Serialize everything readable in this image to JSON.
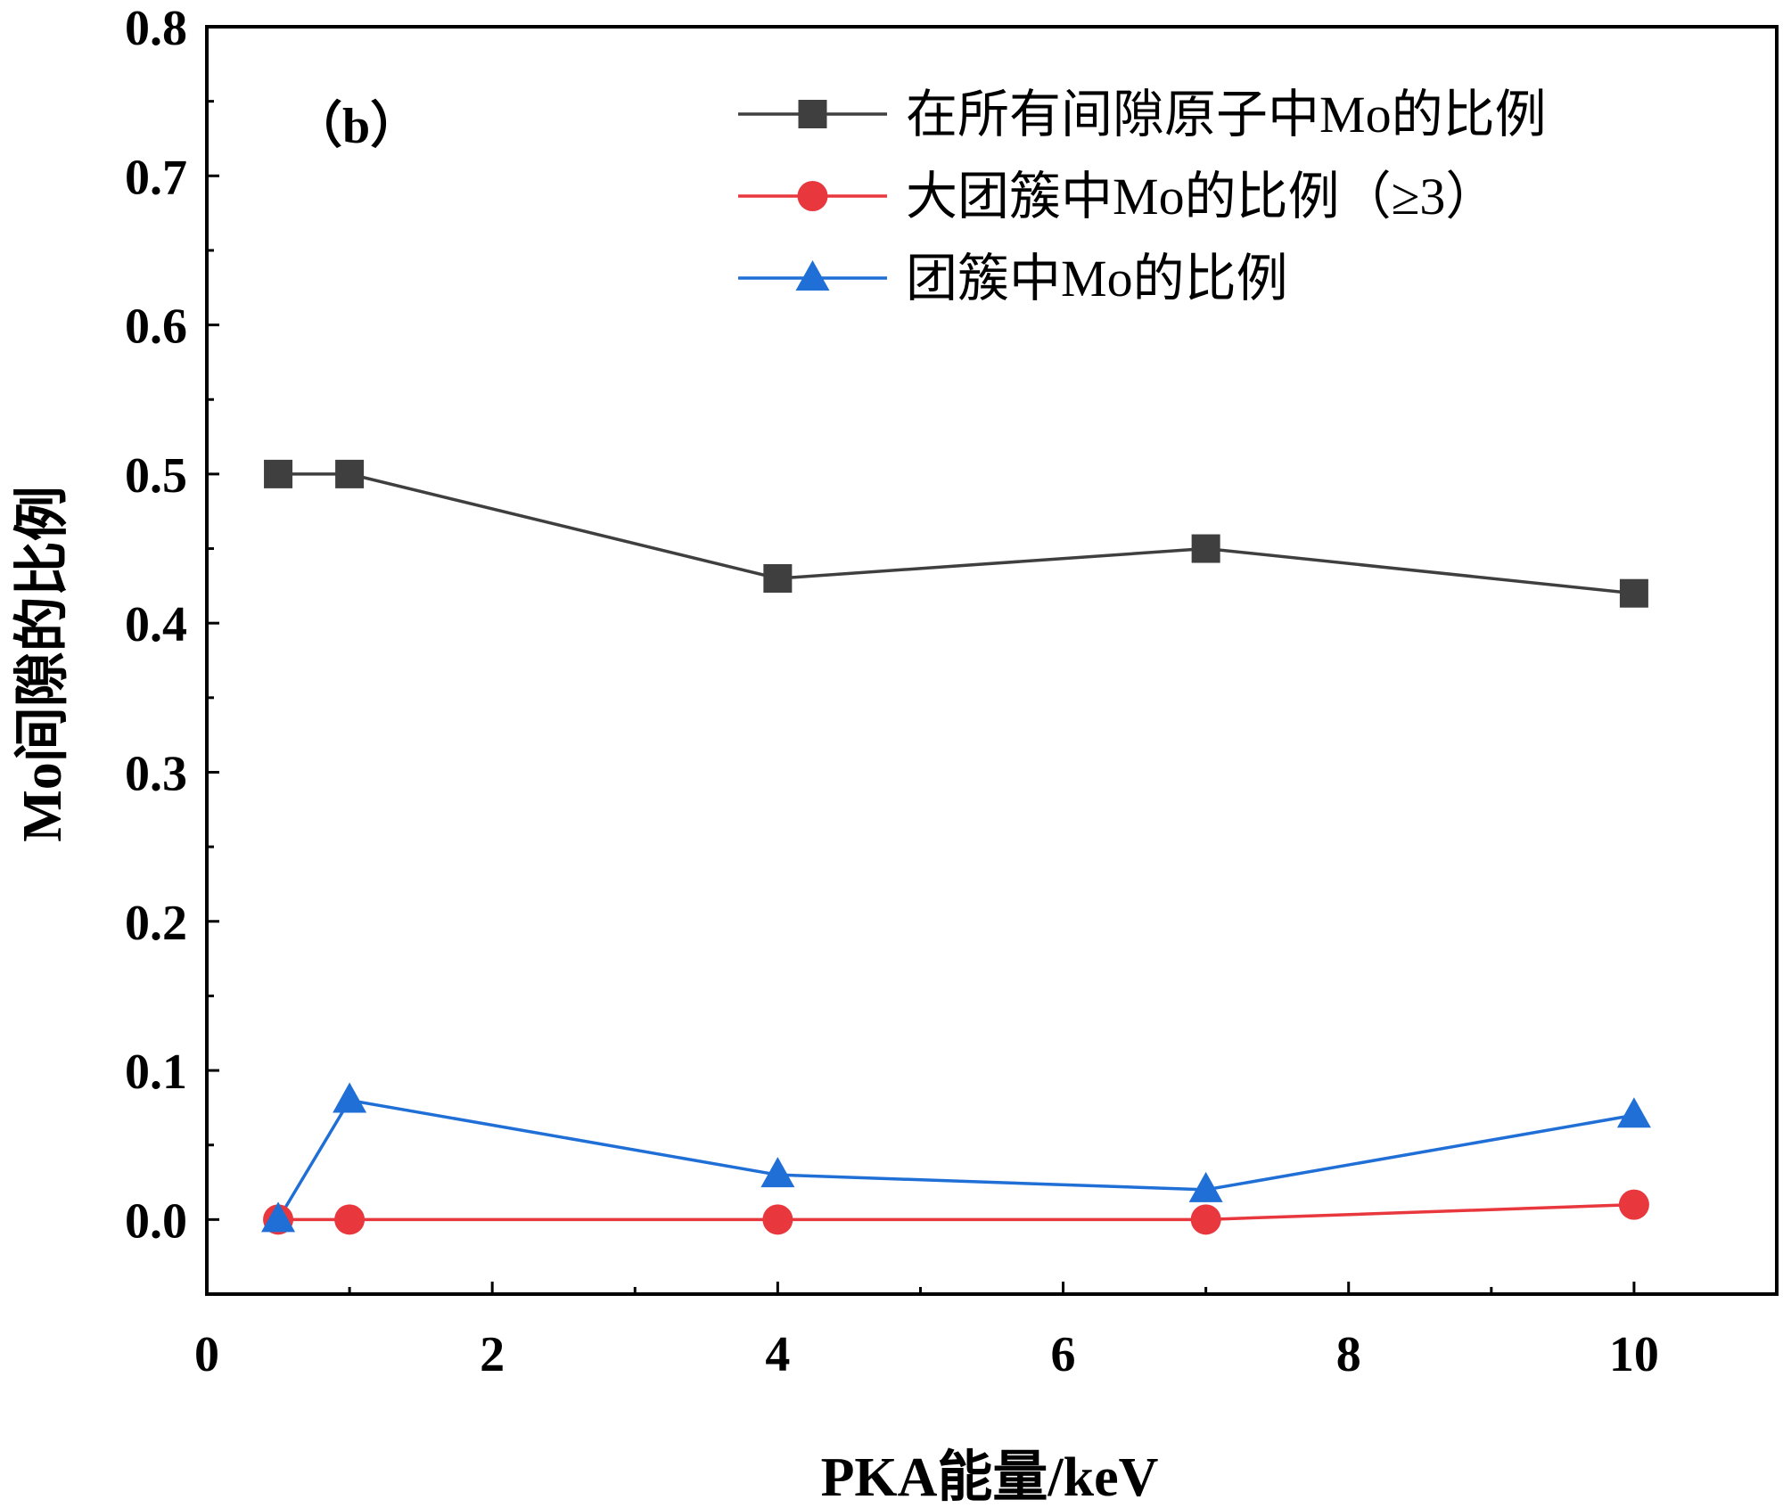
{
  "chart_data": {
    "type": "line",
    "title": "",
    "annotation": "（b）",
    "xlabel": "PKA能量/keV",
    "ylabel": "Mo间隙的比例",
    "xlim": [
      0,
      11
    ],
    "ylim": [
      -0.05,
      0.8
    ],
    "xticks": [
      0,
      2,
      4,
      6,
      8,
      10
    ],
    "xtick_labels": [
      "0",
      "2",
      "4",
      "6",
      "8",
      "10"
    ],
    "yticks": [
      0.0,
      0.1,
      0.2,
      0.3,
      0.4,
      0.5,
      0.6,
      0.7,
      0.8
    ],
    "ytick_labels": [
      "0.0",
      "0.1",
      "0.2",
      "0.3",
      "0.4",
      "0.5",
      "0.6",
      "0.7",
      "0.8"
    ],
    "legend_position": "top-right",
    "grid": false,
    "series": [
      {
        "name": "在所有间隙原子中Mo的比例",
        "marker": "square",
        "color": "#3f3f3f",
        "x": [
          0.5,
          1,
          4,
          7,
          10
        ],
        "y": [
          0.5,
          0.5,
          0.43,
          0.45,
          0.42
        ]
      },
      {
        "name": "大团簇中Mo的比例（≥3）",
        "marker": "circle",
        "color": "#e8373d",
        "x": [
          0.5,
          1,
          4,
          7,
          10
        ],
        "y": [
          0.0,
          0.0,
          0.0,
          0.0,
          0.01
        ]
      },
      {
        "name": "团簇中Mo的比例",
        "marker": "triangle",
        "color": "#1f6fd6",
        "x": [
          0.5,
          1,
          4,
          7,
          10
        ],
        "y": [
          0.0,
          0.08,
          0.03,
          0.02,
          0.07
        ]
      }
    ]
  }
}
